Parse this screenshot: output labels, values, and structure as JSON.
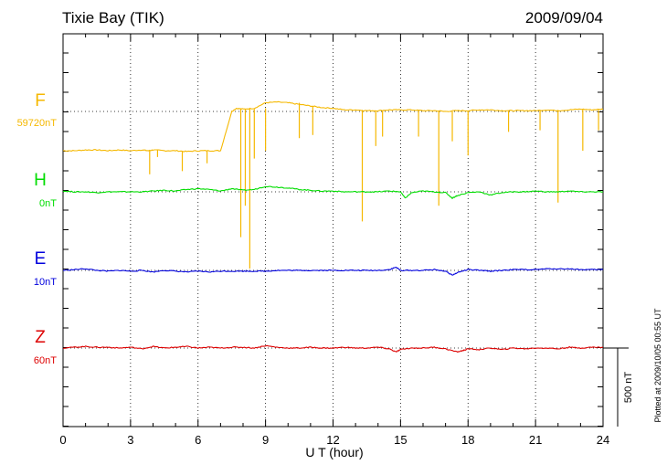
{
  "header": {
    "station": "Tixie Bay (TIK)",
    "date": "2009/09/04"
  },
  "footnote": "Plotted at 2009/10/05 00:55 UT",
  "chart_data": {
    "type": "line",
    "xlabel": "U T (hour)",
    "xlim": [
      0,
      24
    ],
    "x_ticks": [
      0,
      3,
      6,
      9,
      12,
      15,
      18,
      21,
      24
    ],
    "x_tick_labels": [
      "0",
      "3",
      "6",
      "9",
      "12",
      "15",
      "18",
      "21",
      "24"
    ],
    "grid": true,
    "scale_bar": {
      "label": "500 nT",
      "value_nT": 500
    },
    "series": [
      {
        "name": "F",
        "baseline_label": "59720nT",
        "color": "#f5b800",
        "x": [
          0,
          0.5,
          1,
          1.5,
          2,
          2.5,
          3,
          3.5,
          3.8,
          4,
          4.5,
          5,
          5.5,
          6,
          6.5,
          7,
          7.5,
          7.7,
          8,
          8.5,
          9,
          9.5,
          10,
          10.5,
          11,
          11.5,
          12,
          12.5,
          13,
          13.5,
          14,
          14.5,
          15,
          15.5,
          16,
          16.5,
          17,
          17.5,
          18,
          18.5,
          19,
          19.5,
          20,
          20.5,
          21,
          21.5,
          22,
          22.5,
          23,
          23.5,
          24
        ],
        "values": [
          -250,
          -250,
          -245,
          -245,
          -250,
          -245,
          -250,
          -245,
          -250,
          -245,
          -250,
          -250,
          -255,
          -250,
          -250,
          -250,
          0,
          20,
          15,
          20,
          55,
          60,
          55,
          45,
          35,
          25,
          20,
          10,
          10,
          5,
          5,
          10,
          10,
          10,
          5,
          5,
          0,
          5,
          5,
          10,
          10,
          5,
          5,
          5,
          5,
          10,
          5,
          10,
          15,
          10,
          15
        ],
        "spikes": [
          [
            3.85,
            -400
          ],
          [
            4.2,
            -290
          ],
          [
            5.3,
            -380
          ],
          [
            6.4,
            -330
          ],
          [
            7.9,
            -800
          ],
          [
            8.1,
            -600
          ],
          [
            8.3,
            -1000
          ],
          [
            8.5,
            -300
          ],
          [
            9.0,
            -250
          ],
          [
            10.5,
            -170
          ],
          [
            11.1,
            -150
          ],
          [
            13.3,
            -700
          ],
          [
            13.9,
            -220
          ],
          [
            14.2,
            -160
          ],
          [
            15.8,
            -160
          ],
          [
            16.7,
            -600
          ],
          [
            17.3,
            -190
          ],
          [
            18,
            -280
          ],
          [
            19.8,
            -130
          ],
          [
            21.2,
            -120
          ],
          [
            22,
            -580
          ],
          [
            23.1,
            -250
          ],
          [
            23.8,
            -120
          ]
        ]
      },
      {
        "name": "H",
        "baseline_label": "0nT",
        "color": "#00dd00",
        "x": [
          0,
          0.5,
          1,
          1.5,
          2,
          2.5,
          3,
          3.5,
          4,
          4.5,
          5,
          5.5,
          6,
          6.5,
          7,
          7.5,
          8,
          8.5,
          9,
          9.5,
          10,
          10.5,
          11,
          11.5,
          12,
          12.5,
          13,
          13.5,
          14,
          14.5,
          15,
          15.2,
          15.5,
          16,
          16.5,
          17,
          17.3,
          17.5,
          18,
          18.5,
          19,
          19.5,
          20,
          20.5,
          21,
          21.5,
          22,
          22.5,
          23,
          23.5,
          24
        ],
        "values": [
          5,
          0,
          0,
          -5,
          0,
          0,
          0,
          0,
          5,
          10,
          5,
          15,
          20,
          15,
          5,
          20,
          10,
          15,
          35,
          30,
          25,
          15,
          10,
          5,
          5,
          0,
          0,
          0,
          0,
          5,
          0,
          -40,
          -5,
          5,
          0,
          -5,
          -40,
          -25,
          -5,
          0,
          -20,
          -5,
          0,
          0,
          5,
          0,
          0,
          5,
          0,
          0,
          0
        ]
      },
      {
        "name": "E",
        "baseline_label": "10nT",
        "color": "#0000dd",
        "x": [
          0,
          0.5,
          1,
          1.5,
          2,
          2.5,
          3,
          3.5,
          4,
          4.5,
          5,
          5.5,
          6,
          6.5,
          7,
          7.5,
          8,
          8.5,
          9,
          9.5,
          10,
          10.5,
          11,
          11.5,
          12,
          12.5,
          13,
          13.5,
          14,
          14.5,
          14.8,
          15,
          15.5,
          16,
          16.5,
          17,
          17.3,
          17.6,
          18,
          18.5,
          19,
          19.5,
          20,
          20.5,
          21,
          21.5,
          22,
          22.5,
          23,
          23.5,
          24
        ],
        "values": [
          0,
          5,
          10,
          0,
          -5,
          0,
          -5,
          0,
          -10,
          0,
          -5,
          -10,
          -5,
          -10,
          -5,
          -5,
          -5,
          -5,
          -5,
          0,
          0,
          0,
          0,
          0,
          0,
          0,
          0,
          0,
          0,
          5,
          20,
          0,
          0,
          0,
          5,
          -5,
          -30,
          -10,
          5,
          0,
          -5,
          0,
          5,
          5,
          5,
          10,
          10,
          10,
          5,
          5,
          5
        ]
      },
      {
        "name": "Z",
        "baseline_label": "60nT",
        "color": "#dd0000",
        "x": [
          0,
          0.5,
          1,
          1.5,
          2,
          2.5,
          3,
          3.5,
          4,
          4.5,
          5,
          5.5,
          6,
          6.5,
          7,
          7.5,
          8,
          8.5,
          9,
          9.5,
          10,
          10.5,
          11,
          11.5,
          12,
          12.5,
          13,
          13.5,
          14,
          14.5,
          14.8,
          15,
          15.5,
          16,
          16.5,
          17,
          17.5,
          17.8,
          18,
          18.5,
          19,
          19.5,
          20,
          20.5,
          21,
          21.5,
          22,
          22.5,
          23,
          23.5,
          24
        ],
        "values": [
          0,
          5,
          10,
          5,
          5,
          0,
          5,
          -5,
          10,
          0,
          5,
          10,
          0,
          5,
          0,
          5,
          5,
          0,
          15,
          5,
          0,
          0,
          5,
          0,
          0,
          5,
          0,
          0,
          5,
          -5,
          -25,
          -10,
          0,
          0,
          5,
          -5,
          -25,
          -15,
          -5,
          -10,
          0,
          -10,
          0,
          -5,
          0,
          0,
          -5,
          5,
          0,
          5,
          5
        ]
      }
    ]
  }
}
